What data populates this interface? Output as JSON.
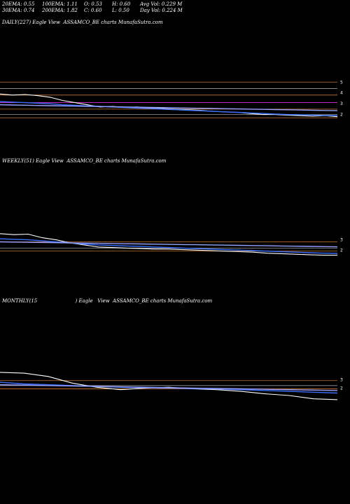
{
  "header": {
    "row1": {
      "ema20": "20EMA: 0.55",
      "ema100": "100EMA: 1.11",
      "open": "O: 0.53",
      "high": "H: 0.60",
      "avg_vol": "Avg Vol: 0.229 M"
    },
    "row2": {
      "ema30": "30EMA: 0.74",
      "ema200": "200EMA: 1.82",
      "close": "C: 0.60",
      "low": "L: 0.50",
      "day_vol": "Day Vol: 0.224  M"
    }
  },
  "panels": [
    {
      "title_prefix": "DAILY(227) Eagle",
      "title_rest": "View  ASSAMCO_BE charts MunafaSutra.com",
      "ticks": [
        "5",
        "4",
        "3",
        "2"
      ]
    },
    {
      "title_prefix": "WEEKLY(51) Eagle",
      "title_rest": "View  ASSAMCO_BE charts MunafaSutra.com",
      "ticks": [
        "3",
        "2"
      ]
    },
    {
      "title_prefix": "MONTHLY(15",
      "title_rest": ") Eagle   View  ASSAMCO_BE charts MunafaSutra.com",
      "ticks": [
        "3",
        "2"
      ]
    }
  ],
  "colors": {
    "background": "#000000",
    "price": "#ffffff",
    "ema_short": "#3b6fff",
    "ema_long": "#9aa0ff",
    "magenta": "#ff33ff",
    "orange": "#c87a2e",
    "grey": "#9a9a9a"
  },
  "chart_data": [
    {
      "type": "line",
      "title": "DAILY(227) Eagle View  ASSAMCO_BE charts MunafaSutra.com",
      "y_ticks": [
        5,
        4,
        3,
        2
      ],
      "ylim": [
        1.2,
        5.6
      ],
      "reference_levels": [
        5,
        4.4,
        3.8,
        3.1,
        2.5,
        2,
        1.7
      ],
      "series": [
        {
          "values": [
            3.9,
            3.8,
            3.85,
            3.75,
            3.6,
            3.3,
            3.1,
            2.9,
            2.7,
            2.75,
            2.65,
            2.7,
            2.6,
            2.55,
            2.5,
            2.45,
            2.4,
            2.3,
            2.25,
            2.2,
            2.1,
            2.0,
            2.0,
            1.95,
            1.9,
            1.85,
            1.9,
            1.8
          ]
        },
        {
          "values": [
            3.2,
            3.15,
            3.1,
            3.05,
            3.0,
            2.9,
            2.85,
            2.8,
            2.75,
            2.7,
            2.65,
            2.6,
            2.55,
            2.5,
            2.45,
            2.4,
            2.35,
            2.3,
            2.25,
            2.2,
            2.15,
            2.1,
            2.05,
            2.0,
            1.98,
            1.95,
            1.92,
            1.9
          ]
        },
        {
          "values": [
            2.9,
            2.88,
            2.86,
            2.84,
            2.82,
            2.8,
            2.78,
            2.76,
            2.74,
            2.72,
            2.7,
            2.68,
            2.66,
            2.64,
            2.62,
            2.6,
            2.58,
            2.56,
            2.54,
            2.52,
            2.5,
            2.48,
            2.46,
            2.44,
            2.42,
            2.4,
            2.38,
            2.36
          ]
        }
      ]
    },
    {
      "type": "line",
      "title": "WEEKLY(51) Eagle View  ASSAMCO_BE charts MunafaSutra.com",
      "y_ticks": [
        3,
        2
      ],
      "ylim": [
        1.0,
        4.4
      ],
      "reference_levels": [
        2.8,
        2.2,
        1.9
      ],
      "series": [
        {
          "values": [
            3.6,
            3.5,
            3.55,
            3.2,
            3.0,
            2.7,
            2.5,
            2.3,
            2.25,
            2.2,
            2.15,
            2.1,
            2.1,
            2.05,
            2.0,
            1.95,
            1.9,
            1.85,
            1.8,
            1.7,
            1.65,
            1.6,
            1.55,
            1.5,
            1.5
          ]
        },
        {
          "values": [
            3.1,
            3.05,
            3.0,
            2.9,
            2.8,
            2.7,
            2.6,
            2.5,
            2.45,
            2.4,
            2.35,
            2.3,
            2.25,
            2.2,
            2.15,
            2.1,
            2.05,
            2.0,
            1.95,
            1.9,
            1.85,
            1.8,
            1.75,
            1.7,
            1.68
          ]
        },
        {
          "values": [
            2.8,
            2.78,
            2.76,
            2.74,
            2.72,
            2.7,
            2.68,
            2.66,
            2.64,
            2.62,
            2.6,
            2.58,
            2.56,
            2.54,
            2.52,
            2.5,
            2.48,
            2.46,
            2.44,
            2.42,
            2.4,
            2.38,
            2.36,
            2.34,
            2.32
          ]
        }
      ]
    },
    {
      "type": "line",
      "title": "MONTHLY(15) Eagle View  ASSAMCO_BE charts MunafaSutra.com",
      "y_ticks": [
        3,
        2
      ],
      "ylim": [
        0.0,
        4.4
      ],
      "reference_levels": [
        2.9,
        2.3,
        1.9
      ],
      "series": [
        {
          "values": [
            3.9,
            3.8,
            3.4,
            2.6,
            2.1,
            1.8,
            2.0,
            2.1,
            1.9,
            1.8,
            1.6,
            1.3,
            1.1,
            0.7,
            0.6
          ]
        },
        {
          "values": [
            2.7,
            2.5,
            2.4,
            2.3,
            2.2,
            2.1,
            2.05,
            2.0,
            1.95,
            1.9,
            1.8,
            1.7,
            1.6,
            1.5,
            1.4
          ]
        },
        {
          "values": [
            2.4,
            2.35,
            2.3,
            2.25,
            2.2,
            2.15,
            2.1,
            2.05,
            2.0,
            1.95,
            1.9,
            1.85,
            1.8,
            1.75,
            1.7
          ]
        }
      ]
    }
  ]
}
